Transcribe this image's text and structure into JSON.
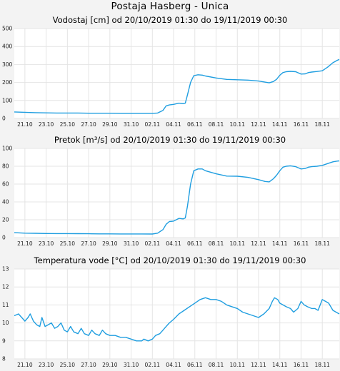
{
  "page_title": "Postaja Hasberg - Unica",
  "colors": {
    "line": "#1f9ee0",
    "grid": "#e4e4e4",
    "plot_bg": "#ffffff",
    "page_bg": "#f3f3f3"
  },
  "chart_data": [
    {
      "type": "line",
      "title": "Vodostaj [cm] od 20/10/2019 01:30 do 19/11/2019 00:30",
      "x_tick_labels": [
        "21.10",
        "23.10",
        "25.10",
        "27.10",
        "29.10",
        "31.10",
        "02.11",
        "04.11",
        "06.11",
        "08.11",
        "10.11",
        "12.11",
        "14.11",
        "16.11",
        "18.11"
      ],
      "ylim": [
        0,
        500
      ],
      "y_ticks": [
        0,
        100,
        200,
        300,
        400,
        500
      ],
      "grid": true,
      "series": [
        {
          "points": [
            [
              0,
              36
            ],
            [
              1,
              34
            ],
            [
              2,
              32
            ],
            [
              3,
              31
            ],
            [
              4,
              30
            ],
            [
              5,
              30
            ],
            [
              6,
              30
            ],
            [
              7,
              29
            ],
            [
              8,
              29
            ],
            [
              9,
              29
            ],
            [
              10,
              28
            ],
            [
              11,
              28
            ],
            [
              12,
              28
            ],
            [
              13,
              28
            ],
            [
              13.5,
              30
            ],
            [
              14,
              45
            ],
            [
              14.3,
              70
            ],
            [
              14.6,
              75
            ],
            [
              15,
              78
            ],
            [
              15.5,
              85
            ],
            [
              15.9,
              82
            ],
            [
              16.1,
              85
            ],
            [
              16.3,
              130
            ],
            [
              16.6,
              200
            ],
            [
              16.9,
              238
            ],
            [
              17.3,
              243
            ],
            [
              17.7,
              241
            ],
            [
              18,
              236
            ],
            [
              19,
              225
            ],
            [
              20,
              217
            ],
            [
              21,
              215
            ],
            [
              22,
              213
            ],
            [
              23,
              208
            ],
            [
              23.6,
              202
            ],
            [
              24,
              198
            ],
            [
              24.4,
              205
            ],
            [
              24.7,
              218
            ],
            [
              25,
              240
            ],
            [
              25.3,
              255
            ],
            [
              25.6,
              260
            ],
            [
              26,
              262
            ],
            [
              26.5,
              260
            ],
            [
              26.8,
              252
            ],
            [
              27,
              247
            ],
            [
              27.4,
              248
            ],
            [
              27.7,
              255
            ],
            [
              28,
              258
            ],
            [
              28.5,
              261
            ],
            [
              29,
              265
            ],
            [
              29.5,
              285
            ],
            [
              30,
              310
            ],
            [
              30.4,
              323
            ],
            [
              30.6,
              328
            ]
          ]
        }
      ]
    },
    {
      "type": "line",
      "title": "Pretok [m³/s] od 20/10/2019 01:30 do 19/11/2019 00:30",
      "x_tick_labels": [
        "21.10",
        "23.10",
        "25.10",
        "27.10",
        "29.10",
        "31.10",
        "02.11",
        "04.11",
        "06.11",
        "08.11",
        "10.11",
        "12.11",
        "14.11",
        "16.11",
        "18.11"
      ],
      "ylim": [
        0,
        100
      ],
      "y_ticks": [
        0,
        20,
        40,
        60,
        80,
        100
      ],
      "grid": true,
      "series": [
        {
          "points": [
            [
              0,
              5.5
            ],
            [
              1,
              5
            ],
            [
              2,
              4.8
            ],
            [
              3,
              4.6
            ],
            [
              4,
              4.5
            ],
            [
              5,
              4.5
            ],
            [
              6,
              4.4
            ],
            [
              7,
              4.3
            ],
            [
              8,
              4.2
            ],
            [
              9,
              4.2
            ],
            [
              10,
              4.1
            ],
            [
              11,
              4.1
            ],
            [
              12,
              4.1
            ],
            [
              13,
              4
            ],
            [
              13.5,
              5
            ],
            [
              14,
              9
            ],
            [
              14.3,
              15
            ],
            [
              14.6,
              18
            ],
            [
              15,
              18.5
            ],
            [
              15.5,
              21.5
            ],
            [
              15.9,
              21
            ],
            [
              16.1,
              22
            ],
            [
              16.3,
              35
            ],
            [
              16.6,
              60
            ],
            [
              16.9,
              75
            ],
            [
              17.3,
              77
            ],
            [
              17.7,
              77
            ],
            [
              18,
              75
            ],
            [
              19,
              71.5
            ],
            [
              20,
              69
            ],
            [
              21,
              68.8
            ],
            [
              22,
              67.5
            ],
            [
              23,
              65
            ],
            [
              23.6,
              63
            ],
            [
              24,
              62.5
            ],
            [
              24.4,
              66
            ],
            [
              24.7,
              70
            ],
            [
              25,
              75
            ],
            [
              25.3,
              79
            ],
            [
              25.6,
              80
            ],
            [
              26,
              80.5
            ],
            [
              26.5,
              79.5
            ],
            [
              26.8,
              78
            ],
            [
              27,
              77
            ],
            [
              27.4,
              77.5
            ],
            [
              27.7,
              79
            ],
            [
              28,
              79.5
            ],
            [
              28.5,
              80
            ],
            [
              29,
              81
            ],
            [
              29.5,
              83
            ],
            [
              30,
              85
            ],
            [
              30.4,
              85.8
            ],
            [
              30.6,
              86
            ]
          ]
        }
      ]
    },
    {
      "type": "line",
      "title": "Temperatura vode [°C] od 20/10/2019 01:30 do 19/11/2019 00:30",
      "x_tick_labels": [
        "21.10",
        "23.10",
        "25.10",
        "27.10",
        "29.10",
        "31.10",
        "02.11",
        "04.11",
        "06.11",
        "08.11",
        "10.11",
        "12.11",
        "14.11",
        "16.11",
        "18.11"
      ],
      "ylim": [
        8,
        13
      ],
      "y_ticks": [
        8,
        9,
        10,
        11,
        12,
        13
      ],
      "grid": true,
      "series": [
        {
          "points": [
            [
              0,
              10.4
            ],
            [
              0.4,
              10.5
            ],
            [
              0.7,
              10.3
            ],
            [
              1,
              10.1
            ],
            [
              1.3,
              10.3
            ],
            [
              1.5,
              10.5
            ],
            [
              1.8,
              10.1
            ],
            [
              2.1,
              9.9
            ],
            [
              2.4,
              9.8
            ],
            [
              2.6,
              10.3
            ],
            [
              2.9,
              9.8
            ],
            [
              3.2,
              9.9
            ],
            [
              3.5,
              10
            ],
            [
              3.8,
              9.7
            ],
            [
              4.1,
              9.8
            ],
            [
              4.4,
              10
            ],
            [
              4.7,
              9.6
            ],
            [
              5,
              9.5
            ],
            [
              5.3,
              9.8
            ],
            [
              5.6,
              9.5
            ],
            [
              6,
              9.4
            ],
            [
              6.3,
              9.7
            ],
            [
              6.6,
              9.4
            ],
            [
              7,
              9.3
            ],
            [
              7.3,
              9.6
            ],
            [
              7.6,
              9.4
            ],
            [
              8,
              9.3
            ],
            [
              8.3,
              9.6
            ],
            [
              8.6,
              9.4
            ],
            [
              9,
              9.3
            ],
            [
              9.5,
              9.3
            ],
            [
              10,
              9.2
            ],
            [
              10.5,
              9.2
            ],
            [
              11,
              9.1
            ],
            [
              11.5,
              9.0
            ],
            [
              12,
              9.0
            ],
            [
              12.2,
              9.1
            ],
            [
              12.6,
              9.0
            ],
            [
              13,
              9.1
            ],
            [
              13.3,
              9.3
            ],
            [
              13.7,
              9.4
            ],
            [
              14,
              9.6
            ],
            [
              14.3,
              9.8
            ],
            [
              14.6,
              10
            ],
            [
              15,
              10.2
            ],
            [
              15.5,
              10.5
            ],
            [
              16,
              10.7
            ],
            [
              16.5,
              10.9
            ],
            [
              17,
              11.1
            ],
            [
              17.5,
              11.3
            ],
            [
              18,
              11.4
            ],
            [
              18.5,
              11.3
            ],
            [
              19,
              11.3
            ],
            [
              19.5,
              11.2
            ],
            [
              20,
              11.0
            ],
            [
              20.5,
              10.9
            ],
            [
              21,
              10.8
            ],
            [
              21.5,
              10.6
            ],
            [
              22,
              10.5
            ],
            [
              22.5,
              10.4
            ],
            [
              23,
              10.3
            ],
            [
              23.5,
              10.5
            ],
            [
              24,
              10.8
            ],
            [
              24.3,
              11.2
            ],
            [
              24.5,
              11.4
            ],
            [
              24.8,
              11.3
            ],
            [
              25,
              11.1
            ],
            [
              25.3,
              11
            ],
            [
              25.6,
              10.9
            ],
            [
              26,
              10.8
            ],
            [
              26.3,
              10.6
            ],
            [
              26.7,
              10.8
            ],
            [
              27,
              11.2
            ],
            [
              27.3,
              11
            ],
            [
              27.6,
              10.9
            ],
            [
              28,
              10.8
            ],
            [
              28.3,
              10.8
            ],
            [
              28.6,
              10.7
            ],
            [
              29,
              11.3
            ],
            [
              29.3,
              11.2
            ],
            [
              29.6,
              11.1
            ],
            [
              30,
              10.7
            ],
            [
              30.3,
              10.6
            ],
            [
              30.6,
              10.5
            ]
          ]
        }
      ]
    }
  ]
}
